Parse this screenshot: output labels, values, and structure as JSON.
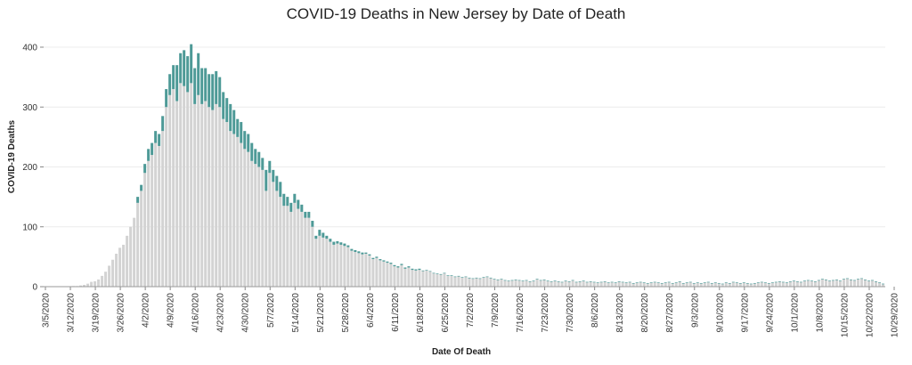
{
  "chart_data": {
    "type": "bar",
    "stacked": true,
    "title": "COVID-19 Deaths in New Jersey by Date of Death",
    "xlabel": "Date Of Death",
    "ylabel": "COVID-19 Deaths",
    "ylim": [
      0,
      420
    ],
    "yticks": [
      0,
      100,
      200,
      300,
      400
    ],
    "grid": true,
    "start_date": "2020-03-05",
    "x_tick_labels": [
      "3/5/2020",
      "3/12/2020",
      "3/19/2020",
      "3/26/2020",
      "4/2/2020",
      "4/9/2020",
      "4/16/2020",
      "4/23/2020",
      "4/30/2020",
      "5/7/2020",
      "5/14/2020",
      "5/21/2020",
      "5/28/2020",
      "6/4/2020",
      "6/11/2020",
      "6/18/2020",
      "6/25/2020",
      "7/2/2020",
      "7/9/2020",
      "7/16/2020",
      "7/23/2020",
      "7/30/2020",
      "8/6/2020",
      "8/13/2020",
      "8/20/2020",
      "8/27/2020",
      "9/3/2020",
      "9/10/2020",
      "9/17/2020",
      "9/24/2020",
      "10/1/2020",
      "10/8/2020",
      "10/15/2020",
      "10/22/2020",
      "10/29/2020",
      "11/5/2020"
    ],
    "colors": {
      "confirmed": "#d3d3d3",
      "probable": "#4e9a97"
    },
    "series": [
      {
        "values": [
          0,
          0,
          0,
          0,
          0,
          0,
          0,
          0,
          1,
          1,
          2,
          3,
          5,
          8,
          9,
          12,
          18,
          25,
          35,
          45,
          55,
          65,
          70,
          85,
          100,
          115,
          140,
          160,
          190,
          210,
          220,
          240,
          235,
          260,
          300,
          320,
          330,
          310,
          340,
          335,
          325,
          340,
          305,
          320,
          305,
          310,
          300,
          295,
          305,
          300,
          280,
          275,
          260,
          255,
          250,
          240,
          230,
          225,
          210,
          205,
          200,
          195,
          160,
          190,
          175,
          160,
          150,
          135,
          135,
          125,
          140,
          130,
          125,
          115,
          115,
          100,
          80,
          85,
          82,
          80,
          75,
          70,
          72,
          70,
          68,
          66,
          60,
          58,
          56,
          54,
          55,
          52,
          46,
          48,
          44,
          42,
          40,
          38,
          34,
          32,
          36,
          30,
          32,
          28,
          27,
          28,
          26,
          27,
          25,
          22,
          21,
          20,
          22,
          18,
          18,
          16,
          17,
          15,
          16,
          14,
          13,
          14,
          13,
          15,
          16,
          14,
          12,
          11,
          12,
          10,
          9,
          10,
          11,
          10,
          9,
          10,
          8,
          9,
          12,
          10,
          11,
          9,
          8,
          9,
          8,
          7,
          9,
          8,
          10,
          7,
          8,
          9,
          7,
          8,
          7,
          6,
          7,
          8,
          6,
          7,
          6,
          8,
          7,
          6,
          7,
          5,
          6,
          7,
          6,
          5,
          6,
          7,
          6,
          5,
          6,
          7,
          5,
          6,
          8,
          5,
          6,
          7,
          5,
          6,
          5,
          6,
          7,
          5,
          6,
          5,
          4,
          6,
          5,
          7,
          6,
          5,
          6,
          5,
          4,
          5,
          6,
          7,
          6,
          5,
          6,
          7,
          8,
          7,
          6,
          8,
          9,
          8,
          7,
          9,
          10,
          9,
          8,
          10,
          12,
          11,
          9,
          10,
          11,
          9,
          12,
          13,
          11,
          10,
          12,
          13,
          11,
          9,
          10,
          8,
          6,
          4
        ]
      },
      {
        "values": [
          0,
          0,
          0,
          0,
          0,
          0,
          0,
          0,
          0,
          0,
          0,
          0,
          0,
          0,
          0,
          0,
          0,
          0,
          0,
          0,
          0,
          0,
          0,
          0,
          0,
          0,
          10,
          10,
          15,
          20,
          20,
          20,
          20,
          25,
          30,
          35,
          40,
          60,
          50,
          60,
          60,
          65,
          60,
          70,
          60,
          55,
          55,
          60,
          55,
          50,
          45,
          40,
          45,
          40,
          30,
          35,
          30,
          30,
          30,
          25,
          25,
          20,
          35,
          20,
          20,
          25,
          25,
          20,
          15,
          15,
          15,
          15,
          12,
          10,
          10,
          10,
          5,
          10,
          8,
          5,
          5,
          5,
          4,
          4,
          4,
          3,
          3,
          3,
          3,
          3,
          2,
          2,
          2,
          2,
          2,
          2,
          2,
          2,
          2,
          2,
          2,
          2,
          2,
          2,
          2,
          2,
          1,
          1,
          1,
          1,
          1,
          1,
          1,
          1,
          1,
          1,
          1,
          1,
          1,
          1,
          1,
          1,
          1,
          1,
          1,
          1,
          1,
          1,
          1,
          1,
          1,
          1,
          1,
          1,
          1,
          1,
          1,
          1,
          1,
          1,
          1,
          1,
          1,
          1,
          1,
          1,
          1,
          1,
          1,
          1,
          1,
          1,
          1,
          1,
          1,
          1,
          1,
          1,
          1,
          1,
          1,
          1,
          1,
          1,
          1,
          1,
          1,
          1,
          1,
          1,
          1,
          1,
          1,
          1,
          1,
          1,
          1,
          1,
          1,
          1,
          1,
          1,
          1,
          1,
          1,
          1,
          1,
          1,
          1,
          1,
          1,
          1,
          1,
          1,
          1,
          1,
          1,
          1,
          1,
          1,
          1,
          1,
          1,
          1,
          1,
          1,
          1,
          1,
          1,
          1,
          1,
          1,
          1,
          1,
          1,
          1,
          1,
          1,
          1,
          1,
          1,
          1,
          1,
          1,
          1,
          1,
          1,
          1,
          1,
          1,
          1,
          1,
          1,
          1,
          1,
          1,
          1,
          1,
          1,
          1,
          1,
          1,
          1,
          1
        ]
      }
    ]
  }
}
